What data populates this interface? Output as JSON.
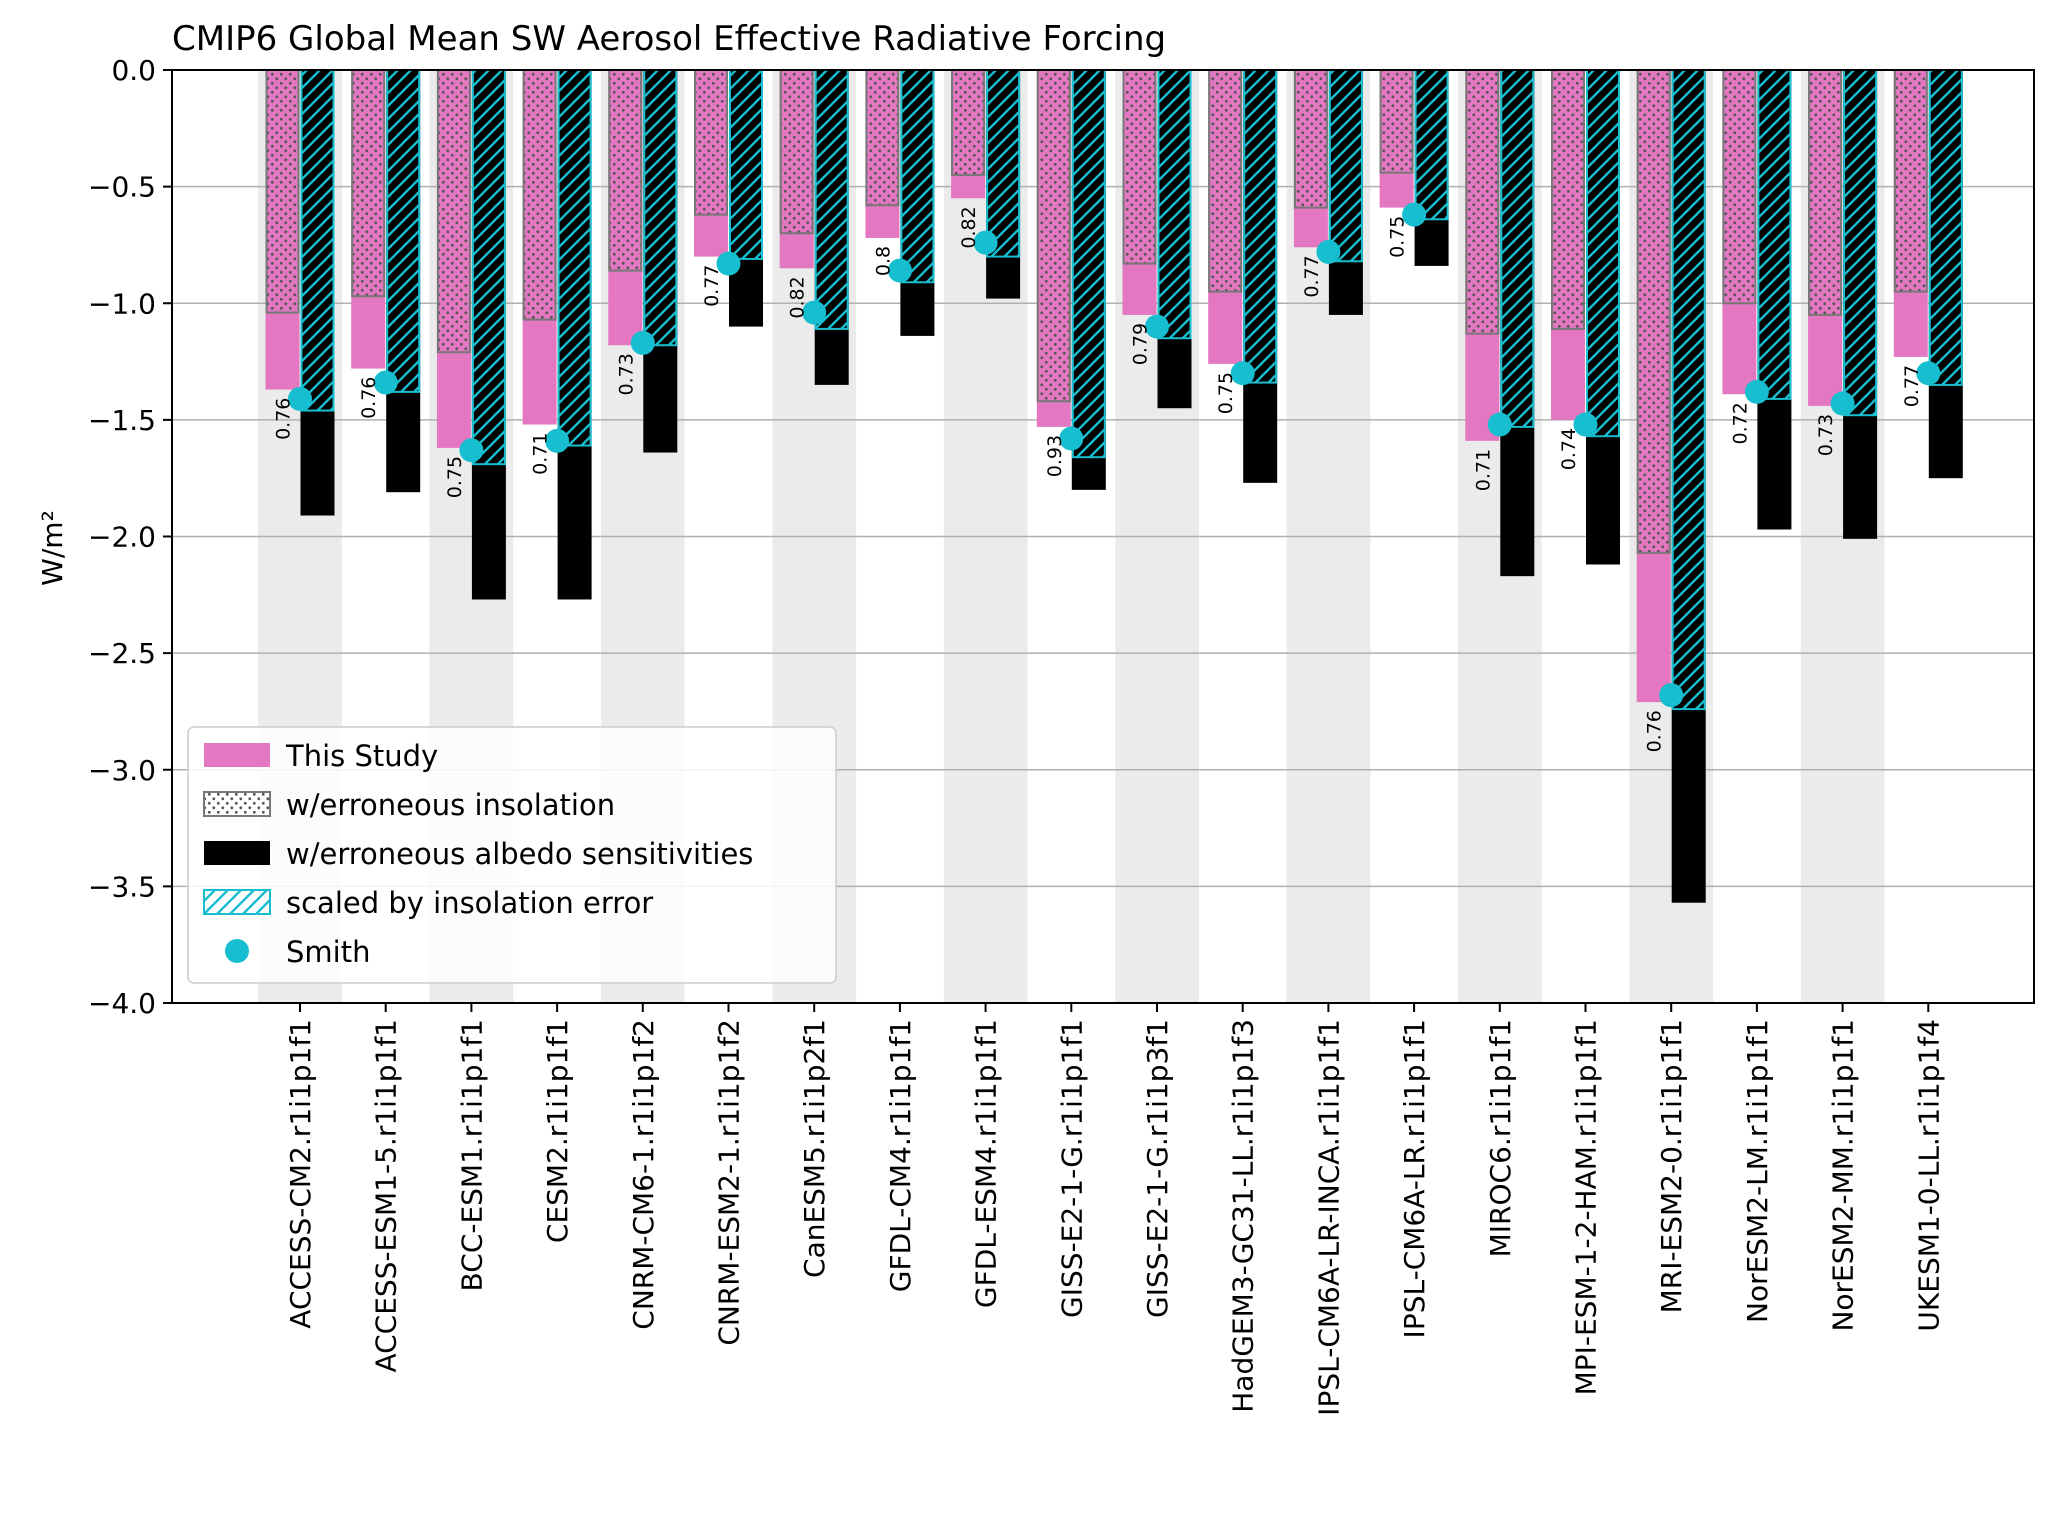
{
  "chart_data": {
    "type": "bar",
    "title": "CMIP6 Global Mean SW Aerosol Effective Radiative Forcing",
    "xlabel": "",
    "ylabel": "W/m²",
    "ylim": [
      -4.0,
      0.0
    ],
    "yticks": [
      0.0,
      -0.5,
      -1.0,
      -1.5,
      -2.0,
      -2.5,
      -3.0,
      -3.5,
      -4.0
    ],
    "ytick_labels": [
      "0.0",
      "−0.5",
      "−1.0",
      "−1.5",
      "−2.0",
      "−2.5",
      "−3.0",
      "−3.5",
      "−4.0"
    ],
    "grid": true,
    "legend_position": "lower-left",
    "categories": [
      "ACCESS-CM2.r1i1p1f1",
      "ACCESS-ESM1-5.r1i1p1f1",
      "BCC-ESM1.r1i1p1f1",
      "CESM2.r1i1p1f1",
      "CNRM-CM6-1.r1i1p1f2",
      "CNRM-ESM2-1.r1i1p1f2",
      "CanESM5.r1i1p2f1",
      "GFDL-CM4.r1i1p1f1",
      "GFDL-ESM4.r1i1p1f1",
      "GISS-E2-1-G.r1i1p1f1",
      "GISS-E2-1-G.r1i1p3f1",
      "HadGEM3-GC31-LL.r1i1p1f3",
      "IPSL-CM6A-LR-INCA.r1i1p1f1",
      "IPSL-CM6A-LR.r1i1p1f1",
      "MIROC6.r1i1p1f1",
      "MPI-ESM-1-2-HAM.r1i1p1f1",
      "MRI-ESM2-0.r1i1p1f1",
      "NorESM2-LM.r1i1p1f1",
      "NorESM2-MM.r1i1p1f1",
      "UKESM1-0-LL.r1i1p1f4"
    ],
    "series": [
      {
        "name": "This Study",
        "color": "#e377c2",
        "values": [
          -1.37,
          -1.28,
          -1.62,
          -1.52,
          -1.18,
          -0.8,
          -0.85,
          -0.72,
          -0.55,
          -1.53,
          -1.05,
          -1.26,
          -0.76,
          -0.59,
          -1.59,
          -1.5,
          -2.71,
          -1.39,
          -1.44,
          -1.23
        ]
      },
      {
        "name": "w/erroneous insolation",
        "color": "#777777",
        "values": [
          -1.04,
          -0.97,
          -1.21,
          -1.07,
          -0.86,
          -0.62,
          -0.7,
          -0.58,
          -0.45,
          -1.42,
          -0.83,
          -0.95,
          -0.59,
          -0.44,
          -1.13,
          -1.11,
          -2.07,
          -1.0,
          -1.05,
          -0.95
        ]
      },
      {
        "name": "w/erroneous albedo sensitivities",
        "color": "#000000",
        "values": [
          -1.91,
          -1.81,
          -2.27,
          -2.27,
          -1.64,
          -1.1,
          -1.35,
          -1.14,
          -0.98,
          -1.8,
          -1.45,
          -1.77,
          -1.05,
          -0.84,
          -2.17,
          -2.12,
          -3.57,
          -1.97,
          -2.01,
          -1.75
        ]
      },
      {
        "name": "scaled by insolation error",
        "color": "#17becf",
        "values": [
          -1.46,
          -1.38,
          -1.69,
          -1.61,
          -1.18,
          -0.81,
          -1.11,
          -0.91,
          -0.8,
          -1.66,
          -1.15,
          -1.34,
          -0.82,
          -0.64,
          -1.53,
          -1.57,
          -2.74,
          -1.41,
          -1.48,
          -1.35
        ]
      },
      {
        "name": "Smith",
        "color": "#17becf",
        "values": [
          -1.41,
          -1.34,
          -1.63,
          -1.59,
          -1.17,
          -0.83,
          -1.04,
          -0.86,
          -0.74,
          -1.58,
          -1.1,
          -1.3,
          -0.78,
          -0.62,
          -1.52,
          -1.52,
          -2.68,
          -1.38,
          -1.43,
          -1.3
        ]
      }
    ],
    "annotations": [
      "0.76",
      "0.76",
      "0.75",
      "0.71",
      "0.73",
      "0.77",
      "0.82",
      "0.8",
      "0.82",
      "0.93",
      "0.79",
      "0.75",
      "0.77",
      "0.75",
      "0.71",
      "0.74",
      "0.76",
      "0.72",
      "0.73",
      "0.77"
    ]
  }
}
